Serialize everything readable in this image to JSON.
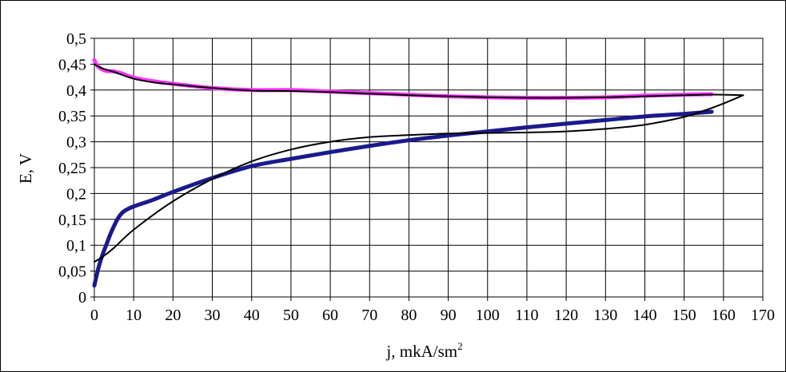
{
  "chart_data": {
    "type": "line",
    "xlabel": "j, mkA/sm",
    "xlabel_superscript": "2",
    "ylabel": "E, V",
    "xlim": [
      0,
      170
    ],
    "ylim": [
      0,
      0.5
    ],
    "x_ticks": [
      "0",
      "10",
      "20",
      "30",
      "40",
      "50",
      "60",
      "70",
      "80",
      "90",
      "100",
      "110",
      "120",
      "130",
      "140",
      "150",
      "160",
      "170"
    ],
    "y_ticks": [
      "0",
      "0,05",
      "0,1",
      "0,15",
      "0,2",
      "0,25",
      "0,3",
      "0,35",
      "0,4",
      "0,45",
      "0,5"
    ],
    "grid": true,
    "legend": "none",
    "series": [
      {
        "color": "#ff33ff",
        "width": 5,
        "x": [
          0,
          0.5,
          1,
          2,
          3,
          5,
          7,
          10,
          15,
          20,
          30,
          40,
          50,
          60,
          70,
          80,
          90,
          100,
          110,
          120,
          130,
          140,
          150,
          157
        ],
        "y": [
          0.458,
          0.45,
          0.445,
          0.44,
          0.437,
          0.436,
          0.432,
          0.424,
          0.417,
          0.412,
          0.404,
          0.4,
          0.4,
          0.397,
          0.394,
          0.391,
          0.388,
          0.386,
          0.385,
          0.385,
          0.386,
          0.389,
          0.391,
          0.392
        ]
      },
      {
        "color": "#1a1a8c",
        "width": 5,
        "x": [
          0,
          1,
          2,
          3,
          4,
          5,
          6,
          7,
          8,
          10,
          15,
          20,
          30,
          40,
          50,
          60,
          70,
          80,
          90,
          100,
          110,
          120,
          130,
          140,
          150,
          157
        ],
        "y": [
          0.022,
          0.055,
          0.08,
          0.1,
          0.12,
          0.137,
          0.152,
          0.162,
          0.168,
          0.175,
          0.188,
          0.203,
          0.23,
          0.253,
          0.267,
          0.28,
          0.292,
          0.303,
          0.312,
          0.32,
          0.328,
          0.335,
          0.342,
          0.349,
          0.354,
          0.358
        ]
      },
      {
        "color": "#000000",
        "width": 2,
        "x": [
          0,
          2,
          5,
          10,
          15,
          20,
          30,
          40,
          50,
          60,
          70,
          80,
          90,
          100,
          110,
          120,
          130,
          140,
          150,
          155,
          160,
          165
        ],
        "y": [
          0.45,
          0.442,
          0.435,
          0.422,
          0.415,
          0.411,
          0.404,
          0.399,
          0.398,
          0.396,
          0.393,
          0.39,
          0.388,
          0.386,
          0.385,
          0.385,
          0.386,
          0.388,
          0.39,
          0.391,
          0.391,
          0.39
        ]
      },
      {
        "color": "#000000",
        "width": 2,
        "x": [
          0,
          2,
          5,
          10,
          20,
          30,
          40,
          50,
          60,
          70,
          80,
          90,
          100,
          110,
          120,
          130,
          140,
          150,
          155,
          160,
          165
        ],
        "y": [
          0.068,
          0.077,
          0.095,
          0.13,
          0.185,
          0.228,
          0.262,
          0.285,
          0.3,
          0.309,
          0.313,
          0.316,
          0.317,
          0.318,
          0.32,
          0.325,
          0.333,
          0.348,
          0.36,
          0.374,
          0.39
        ]
      }
    ]
  }
}
